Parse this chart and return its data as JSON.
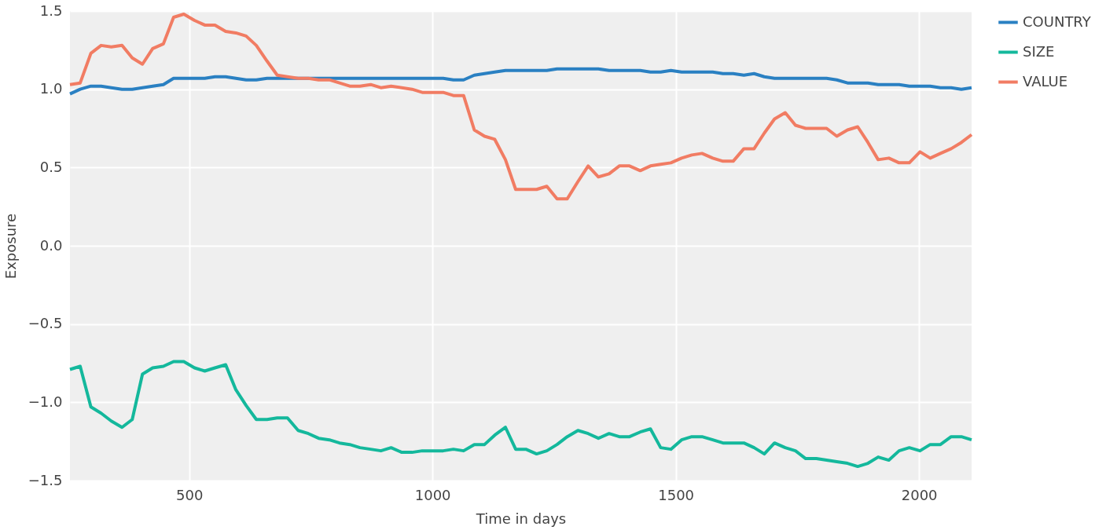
{
  "chart_data": {
    "type": "line",
    "xlabel": "Time in days",
    "ylabel": "Exposure",
    "x": [
      255,
      276,
      298,
      319,
      340,
      362,
      383,
      404,
      425,
      447,
      468,
      489,
      511,
      532,
      553,
      575,
      596,
      617,
      638,
      660,
      681,
      702,
      724,
      745,
      766,
      788,
      809,
      830,
      851,
      873,
      894,
      915,
      937,
      958,
      979,
      1001,
      1022,
      1043,
      1064,
      1086,
      1107,
      1128,
      1150,
      1171,
      1192,
      1214,
      1235,
      1256,
      1277,
      1299,
      1320,
      1341,
      1363,
      1384,
      1405,
      1427,
      1448,
      1469,
      1490,
      1512,
      1533,
      1554,
      1576,
      1597,
      1618,
      1640,
      1661,
      1682,
      1703,
      1725,
      1746,
      1767,
      1789,
      1810,
      1831,
      1853,
      1874,
      1895,
      1916,
      1938,
      1959,
      1980,
      2002,
      2023,
      2044,
      2066,
      2087,
      2108
    ],
    "series": [
      {
        "name": "COUNTRY",
        "color": "#2a80c2",
        "values": [
          0.97,
          1.0,
          1.02,
          1.02,
          1.01,
          1.0,
          1.0,
          1.01,
          1.02,
          1.03,
          1.07,
          1.07,
          1.07,
          1.07,
          1.08,
          1.08,
          1.07,
          1.06,
          1.06,
          1.07,
          1.07,
          1.07,
          1.07,
          1.07,
          1.07,
          1.07,
          1.07,
          1.07,
          1.07,
          1.07,
          1.07,
          1.07,
          1.07,
          1.07,
          1.07,
          1.07,
          1.07,
          1.06,
          1.06,
          1.09,
          1.1,
          1.11,
          1.12,
          1.12,
          1.12,
          1.12,
          1.12,
          1.13,
          1.13,
          1.13,
          1.13,
          1.13,
          1.12,
          1.12,
          1.12,
          1.12,
          1.11,
          1.11,
          1.12,
          1.11,
          1.11,
          1.11,
          1.11,
          1.1,
          1.1,
          1.09,
          1.1,
          1.08,
          1.07,
          1.07,
          1.07,
          1.07,
          1.07,
          1.07,
          1.06,
          1.04,
          1.04,
          1.04,
          1.03,
          1.03,
          1.03,
          1.02,
          1.02,
          1.02,
          1.01,
          1.01,
          1.0,
          1.01
        ]
      },
      {
        "name": "SIZE",
        "color": "#14b89c",
        "values": [
          -0.79,
          -0.77,
          -1.03,
          -1.07,
          -1.12,
          -1.16,
          -1.11,
          -0.82,
          -0.78,
          -0.77,
          -0.74,
          -0.74,
          -0.78,
          -0.8,
          -0.78,
          -0.76,
          -0.92,
          -1.02,
          -1.11,
          -1.11,
          -1.1,
          -1.1,
          -1.18,
          -1.2,
          -1.23,
          -1.24,
          -1.26,
          -1.27,
          -1.29,
          -1.3,
          -1.31,
          -1.29,
          -1.32,
          -1.32,
          -1.31,
          -1.31,
          -1.31,
          -1.3,
          -1.31,
          -1.27,
          -1.27,
          -1.21,
          -1.16,
          -1.3,
          -1.3,
          -1.33,
          -1.31,
          -1.27,
          -1.22,
          -1.18,
          -1.2,
          -1.23,
          -1.2,
          -1.22,
          -1.22,
          -1.19,
          -1.17,
          -1.29,
          -1.3,
          -1.24,
          -1.22,
          -1.22,
          -1.24,
          -1.26,
          -1.26,
          -1.26,
          -1.29,
          -1.33,
          -1.26,
          -1.29,
          -1.31,
          -1.36,
          -1.36,
          -1.37,
          -1.38,
          -1.39,
          -1.41,
          -1.39,
          -1.35,
          -1.37,
          -1.31,
          -1.29,
          -1.31,
          -1.27,
          -1.27,
          -1.22,
          -1.22,
          -1.24
        ]
      },
      {
        "name": "VALUE",
        "color": "#f17c63",
        "values": [
          1.03,
          1.04,
          1.23,
          1.28,
          1.27,
          1.28,
          1.2,
          1.16,
          1.26,
          1.29,
          1.46,
          1.48,
          1.44,
          1.41,
          1.41,
          1.37,
          1.36,
          1.34,
          1.28,
          1.18,
          1.09,
          1.08,
          1.07,
          1.07,
          1.06,
          1.06,
          1.04,
          1.02,
          1.02,
          1.03,
          1.01,
          1.02,
          1.01,
          1.0,
          0.98,
          0.98,
          0.98,
          0.96,
          0.96,
          0.74,
          0.7,
          0.68,
          0.55,
          0.36,
          0.36,
          0.36,
          0.38,
          0.3,
          0.3,
          0.41,
          0.51,
          0.44,
          0.46,
          0.51,
          0.51,
          0.48,
          0.51,
          0.52,
          0.53,
          0.56,
          0.58,
          0.59,
          0.56,
          0.54,
          0.54,
          0.62,
          0.62,
          0.72,
          0.81,
          0.85,
          0.77,
          0.75,
          0.75,
          0.75,
          0.7,
          0.74,
          0.76,
          0.66,
          0.55,
          0.56,
          0.53,
          0.53,
          0.6,
          0.56,
          0.59,
          0.62,
          0.66,
          0.71
        ]
      }
    ],
    "xlim": [
      255,
      2108
    ],
    "xticks": [
      500,
      1000,
      1500,
      2000
    ],
    "ylim": [
      -1.5,
      1.5
    ],
    "yticks": [
      -1.5,
      {
        "value": -1.0,
        "label": "−1.0"
      },
      -0.5,
      {
        "value": 0.0,
        "label": "0.0"
      },
      0.5,
      {
        "value": 1.0,
        "label": "1.0"
      },
      1.5
    ],
    "grid": true,
    "legend": "top right",
    "line_style": "solid",
    "marker": "none"
  }
}
